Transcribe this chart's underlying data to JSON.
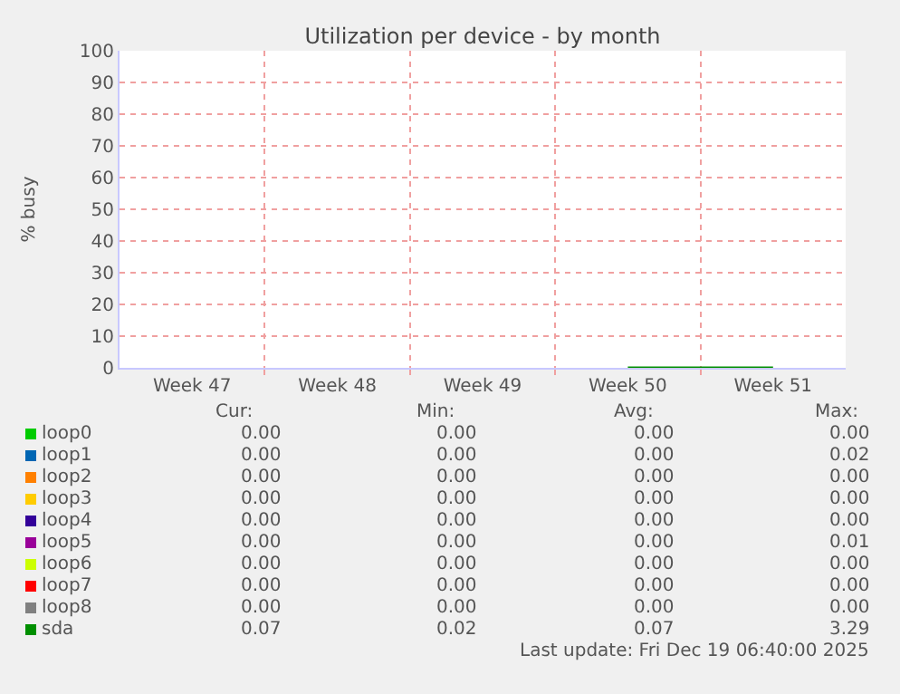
{
  "chart_data": {
    "type": "line",
    "title": "Utilization per device - by month",
    "ylabel": "% busy",
    "categories": [
      "Week 47",
      "Week 48",
      "Week 49",
      "Week 50",
      "Week 51"
    ],
    "ylim": [
      0,
      100
    ],
    "yticks": [
      0,
      10,
      20,
      30,
      40,
      50,
      60,
      70,
      80,
      90,
      100
    ],
    "grid": true,
    "legend": "bottom",
    "series": [
      {
        "name": "loop0",
        "color": "#00cc00",
        "values": [
          null,
          null,
          null,
          null,
          null
        ]
      },
      {
        "name": "loop1",
        "color": "#0066b3",
        "values": [
          null,
          null,
          null,
          null,
          null
        ]
      },
      {
        "name": "loop2",
        "color": "#ff8000",
        "values": [
          null,
          null,
          null,
          null,
          null
        ]
      },
      {
        "name": "loop3",
        "color": "#ffcc00",
        "values": [
          null,
          null,
          null,
          null,
          null
        ]
      },
      {
        "name": "loop4",
        "color": "#330099",
        "values": [
          null,
          null,
          null,
          null,
          null
        ]
      },
      {
        "name": "loop5",
        "color": "#990099",
        "values": [
          null,
          null,
          null,
          null,
          null
        ]
      },
      {
        "name": "loop6",
        "color": "#ccff00",
        "values": [
          null,
          null,
          null,
          null,
          null
        ]
      },
      {
        "name": "loop7",
        "color": "#ff0000",
        "values": [
          null,
          null,
          null,
          null,
          null
        ]
      },
      {
        "name": "loop8",
        "color": "#808080",
        "values": [
          null,
          null,
          null,
          null,
          null
        ]
      },
      {
        "name": "sda",
        "color": "#008f00",
        "values": [
          null,
          null,
          null,
          0,
          0
        ]
      }
    ],
    "annotations": [
      "Cur:",
      "Min:",
      "Avg:",
      "Max:",
      "0.00",
      "0.00",
      "0.00",
      "0.00",
      "0.00",
      "0.00",
      "0.00",
      "0.02",
      "0.00",
      "0.00",
      "0.00",
      "0.00",
      "0.00",
      "0.00",
      "0.00",
      "0.00",
      "0.00",
      "0.00",
      "0.00",
      "0.00",
      "0.00",
      "0.00",
      "0.00",
      "0.01",
      "0.00",
      "0.00",
      "0.00",
      "0.00",
      "0.00",
      "0.00",
      "0.00",
      "0.00",
      "0.00",
      "0.00",
      "0.00",
      "0.00",
      "0.07",
      "0.02",
      "0.07",
      "3.29",
      "Last update: Fri Dec 19 06:40:00 2025"
    ]
  }
}
